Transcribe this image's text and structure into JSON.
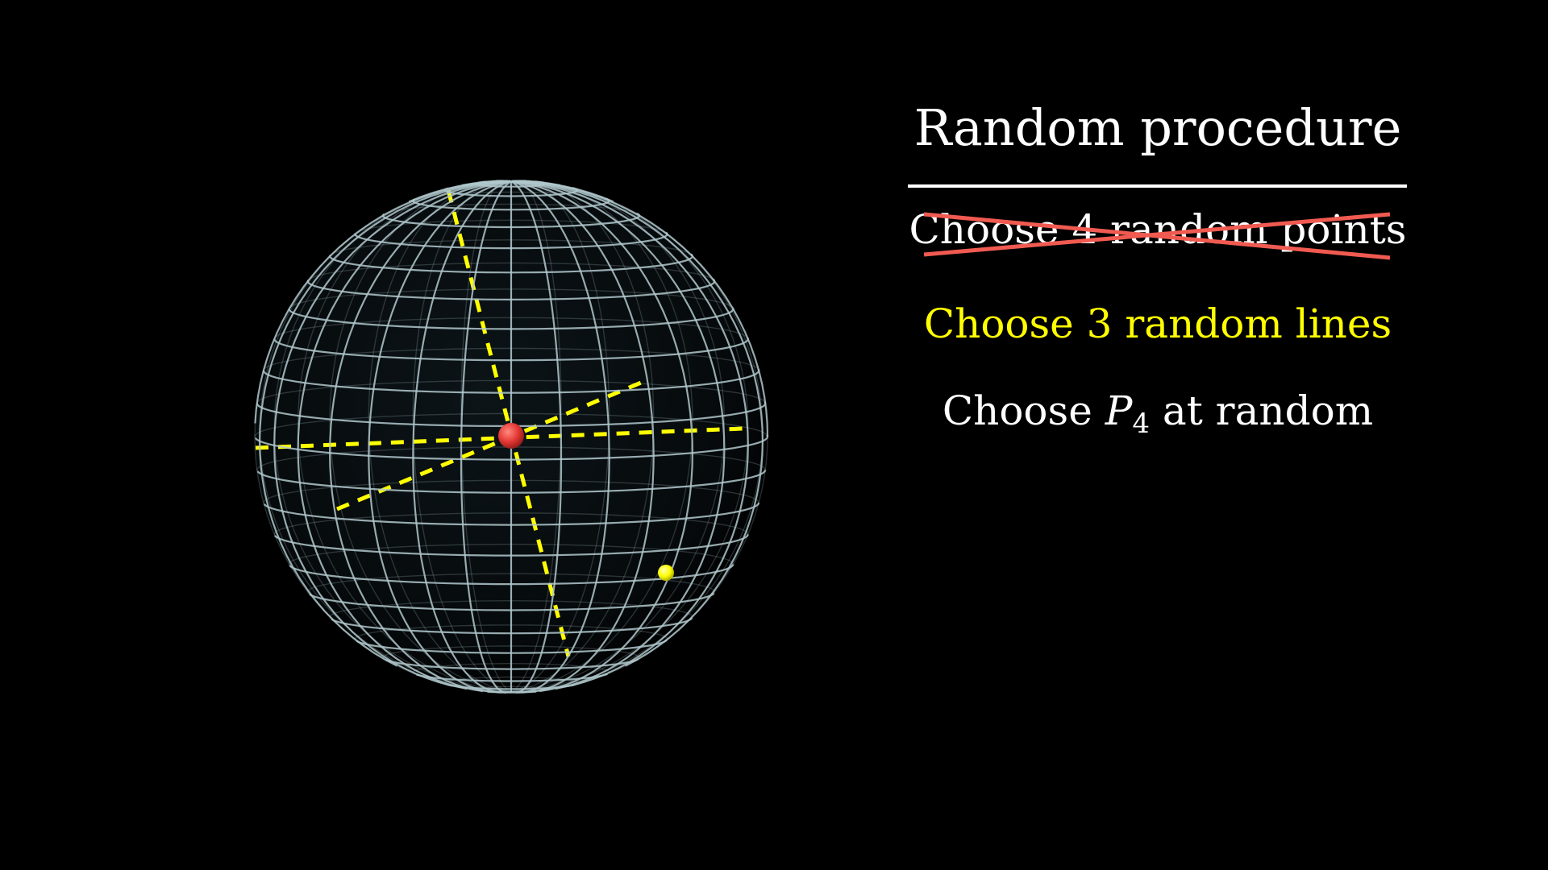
{
  "panel": {
    "title": "Random procedure",
    "steps": [
      {
        "text": "Choose 4 random points",
        "color": "#ffffff",
        "struck_out": true,
        "strike_color": "#f05a50"
      },
      {
        "text": "Choose 3 random lines",
        "color": "#ffff00",
        "struck_out": false
      },
      {
        "prefix": "Choose ",
        "var": "P",
        "sub": "4",
        "suffix": " at random",
        "color": "#ffffff",
        "struck_out": false
      }
    ]
  },
  "colors": {
    "background": "#000000",
    "sphere_mesh": "#b0c8cc",
    "dashed_lines": "#ffff00",
    "center_point": "#e53935",
    "random_point": "#ffff00"
  }
}
